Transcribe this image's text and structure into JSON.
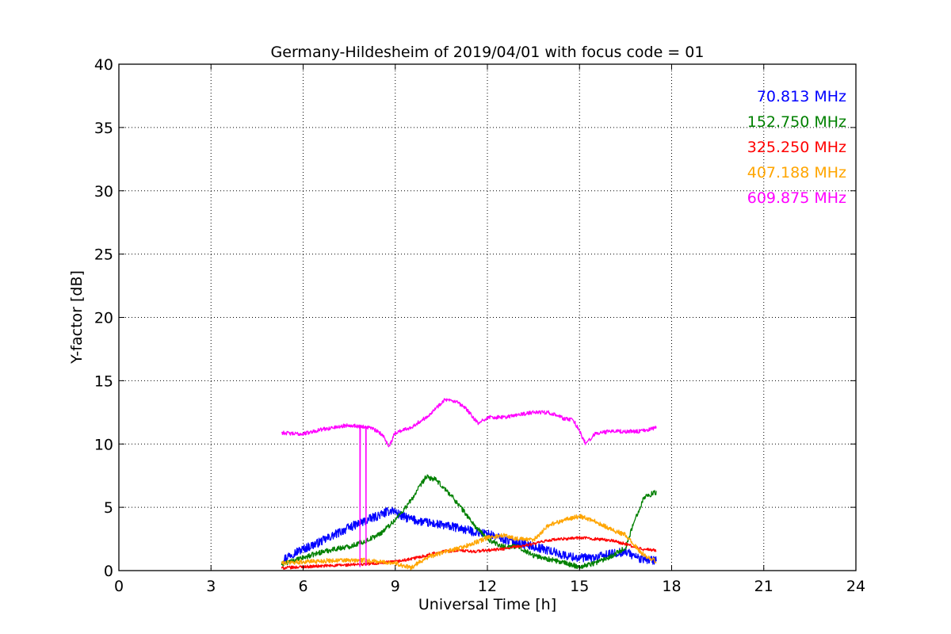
{
  "chart_data": {
    "type": "line",
    "title": "Germany-Hildesheim of 2019/04/01 with focus code = 01",
    "xlabel": "Universal Time [h]",
    "ylabel": "Y-factor [dB]",
    "xlim": [
      0,
      24
    ],
    "ylim": [
      0,
      40
    ],
    "xticks": [
      0,
      3,
      6,
      9,
      12,
      15,
      18,
      21,
      24
    ],
    "yticks": [
      0,
      5,
      10,
      15,
      20,
      25,
      30,
      35,
      40
    ],
    "grid": true,
    "legend_position": "top-right",
    "series": [
      {
        "name": "70.813 MHz",
        "color": "#0000ff",
        "noise": 0.35,
        "points": [
          [
            5.3,
            0.8
          ],
          [
            5.6,
            1.3
          ],
          [
            6.0,
            1.7
          ],
          [
            6.5,
            2.2
          ],
          [
            7.0,
            2.8
          ],
          [
            7.5,
            3.4
          ],
          [
            8.0,
            3.9
          ],
          [
            8.5,
            4.4
          ],
          [
            8.9,
            4.8
          ],
          [
            9.2,
            4.3
          ],
          [
            9.6,
            4.0
          ],
          [
            10.0,
            3.8
          ],
          [
            10.5,
            3.6
          ],
          [
            11.0,
            3.4
          ],
          [
            11.5,
            3.1
          ],
          [
            12.0,
            2.9
          ],
          [
            12.5,
            2.5
          ],
          [
            13.0,
            2.2
          ],
          [
            13.5,
            1.9
          ],
          [
            14.0,
            1.6
          ],
          [
            14.5,
            1.2
          ],
          [
            15.0,
            1.0
          ],
          [
            15.5,
            1.0
          ],
          [
            16.0,
            1.3
          ],
          [
            16.5,
            1.5
          ],
          [
            17.0,
            0.9
          ],
          [
            17.5,
            0.8
          ]
        ]
      },
      {
        "name": "152.750 MHz",
        "color": "#008000",
        "noise": 0.2,
        "points": [
          [
            5.3,
            0.5
          ],
          [
            6.0,
            1.0
          ],
          [
            6.5,
            1.4
          ],
          [
            7.0,
            1.7
          ],
          [
            7.5,
            1.9
          ],
          [
            8.0,
            2.3
          ],
          [
            8.5,
            2.9
          ],
          [
            9.0,
            4.0
          ],
          [
            9.5,
            5.5
          ],
          [
            10.0,
            7.4
          ],
          [
            10.3,
            7.2
          ],
          [
            10.8,
            6.0
          ],
          [
            11.2,
            4.8
          ],
          [
            11.6,
            3.5
          ],
          [
            12.0,
            2.5
          ],
          [
            12.5,
            1.9
          ],
          [
            13.0,
            1.9
          ],
          [
            13.5,
            1.2
          ],
          [
            14.0,
            0.9
          ],
          [
            14.5,
            0.6
          ],
          [
            15.0,
            0.3
          ],
          [
            15.5,
            0.6
          ],
          [
            16.0,
            1.1
          ],
          [
            16.5,
            1.8
          ],
          [
            16.8,
            4.0
          ],
          [
            17.1,
            5.8
          ],
          [
            17.5,
            6.2
          ]
        ]
      },
      {
        "name": "325.250 MHz",
        "color": "#ff0000",
        "noise": 0.12,
        "points": [
          [
            5.3,
            0.2
          ],
          [
            6.0,
            0.3
          ],
          [
            7.0,
            0.4
          ],
          [
            8.0,
            0.5
          ],
          [
            9.0,
            0.7
          ],
          [
            9.5,
            0.9
          ],
          [
            10.0,
            1.2
          ],
          [
            10.5,
            1.5
          ],
          [
            11.0,
            1.6
          ],
          [
            11.5,
            1.5
          ],
          [
            12.0,
            1.6
          ],
          [
            12.5,
            1.7
          ],
          [
            13.0,
            1.9
          ],
          [
            13.5,
            2.1
          ],
          [
            14.0,
            2.4
          ],
          [
            14.5,
            2.5
          ],
          [
            15.0,
            2.6
          ],
          [
            15.5,
            2.5
          ],
          [
            16.0,
            2.4
          ],
          [
            16.5,
            2.1
          ],
          [
            17.0,
            1.7
          ],
          [
            17.5,
            1.6
          ]
        ]
      },
      {
        "name": "407.188 MHz",
        "color": "#ffa500",
        "noise": 0.18,
        "points": [
          [
            5.3,
            0.6
          ],
          [
            6.0,
            0.7
          ],
          [
            7.0,
            0.8
          ],
          [
            8.0,
            0.8
          ],
          [
            8.5,
            0.7
          ],
          [
            9.0,
            0.6
          ],
          [
            9.5,
            0.2
          ],
          [
            10.0,
            1.0
          ],
          [
            10.5,
            1.4
          ],
          [
            11.0,
            1.7
          ],
          [
            11.5,
            2.1
          ],
          [
            12.0,
            2.6
          ],
          [
            12.5,
            2.8
          ],
          [
            13.0,
            2.5
          ],
          [
            13.5,
            2.4
          ],
          [
            14.0,
            3.6
          ],
          [
            14.5,
            4.0
          ],
          [
            15.0,
            4.3
          ],
          [
            15.5,
            3.9
          ],
          [
            16.0,
            3.3
          ],
          [
            16.5,
            2.8
          ],
          [
            17.0,
            1.4
          ],
          [
            17.5,
            0.7
          ]
        ]
      },
      {
        "name": "609.875 MHz",
        "color": "#ff00ff",
        "noise": 0.15,
        "spikes": [
          [
            7.85,
            0.3
          ],
          [
            7.95,
            11.3
          ],
          [
            8.05,
            0.4
          ],
          [
            8.1,
            11.2
          ]
        ],
        "points": [
          [
            5.3,
            10.9
          ],
          [
            5.7,
            10.8
          ],
          [
            6.0,
            10.8
          ],
          [
            6.5,
            11.1
          ],
          [
            7.0,
            11.3
          ],
          [
            7.5,
            11.5
          ],
          [
            7.8,
            11.4
          ],
          [
            8.2,
            11.3
          ],
          [
            8.6,
            10.7
          ],
          [
            8.8,
            9.8
          ],
          [
            9.0,
            10.9
          ],
          [
            9.5,
            11.3
          ],
          [
            10.0,
            12.1
          ],
          [
            10.4,
            13.0
          ],
          [
            10.6,
            13.5
          ],
          [
            11.0,
            13.3
          ],
          [
            11.3,
            12.8
          ],
          [
            11.5,
            12.2
          ],
          [
            11.7,
            11.6
          ],
          [
            12.0,
            12.1
          ],
          [
            12.5,
            12.1
          ],
          [
            13.0,
            12.3
          ],
          [
            13.5,
            12.5
          ],
          [
            14.0,
            12.5
          ],
          [
            14.5,
            12.0
          ],
          [
            14.8,
            11.9
          ],
          [
            15.0,
            11.0
          ],
          [
            15.2,
            10.0
          ],
          [
            15.5,
            10.8
          ],
          [
            16.0,
            11.0
          ],
          [
            16.5,
            11.0
          ],
          [
            17.0,
            11.0
          ],
          [
            17.5,
            11.3
          ]
        ]
      }
    ]
  }
}
